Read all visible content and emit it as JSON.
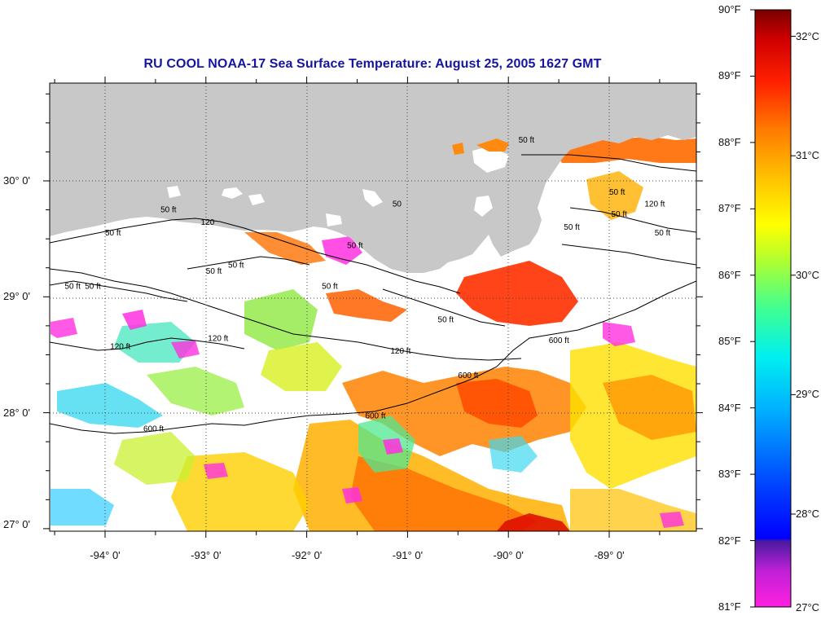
{
  "title": "RU COOL  NOAA-17  Sea Surface Temperature:  August 25, 2005 1627 GMT",
  "map": {
    "land_color": "#c8c8c8",
    "grid_style": "dotted",
    "latitude_labels": [
      {
        "deg": 30,
        "label": "30° 0'"
      },
      {
        "deg": 29,
        "label": "29° 0'"
      },
      {
        "deg": 28,
        "label": "28° 0'"
      },
      {
        "deg": 27,
        "label": "27° 0'"
      }
    ],
    "longitude_labels": [
      {
        "deg": -94,
        "label": "-94° 0'"
      },
      {
        "deg": -93,
        "label": "-93° 0'"
      },
      {
        "deg": -92,
        "label": "-92° 0'"
      },
      {
        "deg": -91,
        "label": "-91° 0'"
      },
      {
        "deg": -90,
        "label": "-90° 0'"
      },
      {
        "deg": -89,
        "label": "-89° 0'"
      }
    ],
    "contour_labels": [
      {
        "text": "50 ft",
        "lon": -93.45,
        "lat": 29.73
      },
      {
        "text": "50 ft",
        "lon": -94.0,
        "lat": 29.53
      },
      {
        "text": "120",
        "lon": -93.05,
        "lat": 29.62
      },
      {
        "text": "50 ft",
        "lon": -92.78,
        "lat": 29.25
      },
      {
        "text": "50 ft",
        "lon": -93.0,
        "lat": 29.2
      },
      {
        "text": "50 ft",
        "lon": -94.4,
        "lat": 29.07
      },
      {
        "text": "50 ft",
        "lon": -94.2,
        "lat": 29.07
      },
      {
        "text": "50 ft",
        "lon": -91.85,
        "lat": 29.07
      },
      {
        "text": "50 ft",
        "lon": -91.6,
        "lat": 29.42
      },
      {
        "text": "120 ft",
        "lon": -92.98,
        "lat": 28.62
      },
      {
        "text": "120 ft",
        "lon": -93.95,
        "lat": 28.55
      },
      {
        "text": "120 ft",
        "lon": -91.17,
        "lat": 28.51
      },
      {
        "text": "50 ft",
        "lon": -90.7,
        "lat": 28.78
      },
      {
        "text": "600 ft",
        "lon": -89.6,
        "lat": 28.6
      },
      {
        "text": "600 ft",
        "lon": -90.5,
        "lat": 28.3
      },
      {
        "text": "600 ft",
        "lon": -91.42,
        "lat": 27.95
      },
      {
        "text": "600 ft",
        "lon": -93.62,
        "lat": 27.84
      },
      {
        "text": "50 ft",
        "lon": -89.9,
        "lat": 30.33
      },
      {
        "text": "50 ft",
        "lon": -89.0,
        "lat": 29.88
      },
      {
        "text": "50 ft",
        "lon": -88.98,
        "lat": 29.69
      },
      {
        "text": "120 ft",
        "lon": -88.65,
        "lat": 29.78
      },
      {
        "text": "50 ft",
        "lon": -88.55,
        "lat": 29.53
      },
      {
        "text": "50 ft",
        "lon": -89.45,
        "lat": 29.58
      },
      {
        "text": "50",
        "lon": -91.15,
        "lat": 29.78
      }
    ]
  },
  "colorbar": {
    "fahrenheit_labels": [
      "90°F",
      "89°F",
      "88°F",
      "87°F",
      "86°F",
      "85°F",
      "84°F",
      "83°F",
      "82°F",
      "81°F"
    ],
    "celsius_labels": [
      "32°C",
      "31°C",
      "30°C",
      "29°C",
      "28°C",
      "27°C"
    ],
    "range_f": [
      81,
      90
    ],
    "colors": [
      "#ff20e0",
      "#6a1aa5",
      "#0010ff",
      "#00b0ff",
      "#00ffff",
      "#40ff80",
      "#ffff00",
      "#ffa000",
      "#ff2000",
      "#7a0000"
    ]
  }
}
